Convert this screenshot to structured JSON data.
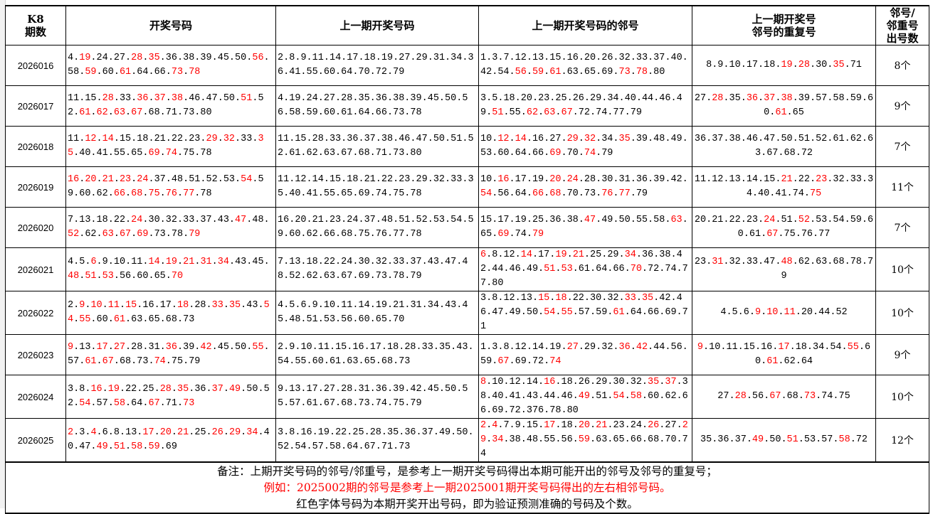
{
  "headers": [
    "K8\n期数",
    "开奖号码",
    "上一期开奖号码",
    "上一期开奖号码的邻号",
    "上一期开奖号\n邻号的重复号",
    "邻号/\n邻重号\n出号数"
  ],
  "colors": {
    "hit": "#ff0000",
    "text": "#000000"
  },
  "rows": [
    {
      "period": "2026016",
      "draw": {
        "nums": [
          "4",
          "19",
          "24",
          "27",
          "28",
          "35",
          "36",
          "38",
          "39",
          "45",
          "50",
          "56",
          "58",
          "59",
          "60",
          "61",
          "64",
          "66",
          "73",
          "78"
        ],
        "red": [
          "19",
          "28",
          "35",
          "56",
          "59",
          "61",
          "73",
          "78"
        ]
      },
      "prev": {
        "nums": [
          "2",
          "8",
          "9",
          "11",
          "14",
          "17",
          "18",
          "19",
          "27",
          "29",
          "31",
          "34",
          "36",
          "41",
          "55",
          "60",
          "64",
          "70",
          "72",
          "79"
        ],
        "red": []
      },
      "neighbors": {
        "nums": [
          "1",
          "3",
          "7",
          "12",
          "13",
          "15",
          "16",
          "20",
          "26",
          "32",
          "33",
          "37",
          "40",
          "42",
          "54",
          "56",
          "59",
          "61",
          "63",
          "65",
          "69",
          "73",
          "78",
          "80"
        ],
        "red": [
          "56",
          "59",
          "61",
          "73",
          "78"
        ]
      },
      "repeats": {
        "nums": [
          "8",
          "9",
          "10",
          "17",
          "18",
          "19",
          "28",
          "30",
          "35",
          "71"
        ],
        "red": [
          "19",
          "28",
          "35"
        ]
      },
      "count": "8个"
    },
    {
      "period": "2026017",
      "draw": {
        "nums": [
          "11",
          "15",
          "28",
          "33",
          "36",
          "37",
          "38",
          "46",
          "47",
          "50",
          "51",
          "52",
          "61",
          "62",
          "63",
          "67",
          "68",
          "71",
          "73",
          "80"
        ],
        "red": [
          "28",
          "36",
          "37",
          "38",
          "51",
          "61",
          "62",
          "63",
          "67"
        ]
      },
      "prev": {
        "nums": [
          "4",
          "19",
          "24",
          "27",
          "28",
          "35",
          "36",
          "38",
          "39",
          "45",
          "50",
          "56",
          "58",
          "59",
          "60",
          "61",
          "64",
          "66",
          "73",
          "78"
        ],
        "red": []
      },
      "neighbors": {
        "nums": [
          "3",
          "5",
          "18",
          "20",
          "23",
          "25",
          "26",
          "29",
          "34",
          "40",
          "44",
          "46",
          "49",
          "51",
          "55",
          "62",
          "63",
          "67",
          "72",
          "74",
          "77",
          "79"
        ],
        "red": [
          "51",
          "62",
          "63",
          "67"
        ]
      },
      "repeats": {
        "nums": [
          "27",
          "28",
          "35",
          "36",
          "37",
          "38",
          "39",
          "57",
          "58",
          "59",
          "60",
          "61",
          "65"
        ],
        "red": [
          "28",
          "36",
          "37",
          "38",
          "61"
        ]
      },
      "count": "9个"
    },
    {
      "period": "2026018",
      "draw": {
        "nums": [
          "11",
          "12",
          "14",
          "15",
          "18",
          "21",
          "22",
          "23",
          "29",
          "32",
          "33",
          "35",
          "40",
          "41",
          "55",
          "65",
          "69",
          "74",
          "75",
          "78"
        ],
        "red": [
          "12",
          "14",
          "29",
          "32",
          "35",
          "69",
          "74"
        ]
      },
      "prev": {
        "nums": [
          "11",
          "15",
          "28",
          "33",
          "36",
          "37",
          "38",
          "46",
          "47",
          "50",
          "51",
          "52",
          "61",
          "62",
          "63",
          "67",
          "68",
          "71",
          "73",
          "80"
        ],
        "red": []
      },
      "neighbors": {
        "nums": [
          "10",
          "12",
          "14",
          "16",
          "27",
          "29",
          "32",
          "34",
          "35",
          "39",
          "48",
          "49",
          "53",
          "60",
          "64",
          "66",
          "69",
          "70",
          "74",
          "79"
        ],
        "red": [
          "12",
          "14",
          "29",
          "32",
          "35",
          "69",
          "74"
        ]
      },
      "repeats": {
        "nums": [
          "36",
          "37",
          "38",
          "46",
          "47",
          "50",
          "51",
          "52",
          "61",
          "62",
          "63",
          "67",
          "68",
          "72"
        ],
        "red": []
      },
      "count": "7个"
    },
    {
      "period": "2026019",
      "draw": {
        "nums": [
          "16",
          "20",
          "21",
          "23",
          "24",
          "37",
          "48",
          "51",
          "52",
          "53",
          "54",
          "59",
          "60",
          "62",
          "66",
          "68",
          "75",
          "76",
          "77",
          "78"
        ],
        "red": [
          "16",
          "20",
          "21",
          "23",
          "24",
          "54",
          "66",
          "68",
          "75",
          "76",
          "77"
        ]
      },
      "prev": {
        "nums": [
          "11",
          "12",
          "14",
          "15",
          "18",
          "21",
          "22",
          "23",
          "29",
          "32",
          "33",
          "35",
          "40",
          "41",
          "55",
          "65",
          "69",
          "74",
          "75",
          "78"
        ],
        "red": []
      },
      "neighbors": {
        "nums": [
          "10",
          "16",
          "17",
          "19",
          "20",
          "24",
          "28",
          "30",
          "31",
          "36",
          "39",
          "42",
          "54",
          "56",
          "64",
          "66",
          "68",
          "70",
          "73",
          "76",
          "77",
          "79"
        ],
        "red": [
          "16",
          "20",
          "24",
          "54",
          "66",
          "68",
          "76",
          "77"
        ]
      },
      "repeats": {
        "nums": [
          "11",
          "12",
          "13",
          "14",
          "15",
          "21",
          "22",
          "23",
          "32",
          "33",
          "34",
          "40",
          "41",
          "74",
          "75"
        ],
        "red": [
          "21",
          "23",
          "75"
        ]
      },
      "count": "11个"
    },
    {
      "period": "2026020",
      "draw": {
        "nums": [
          "7",
          "13",
          "18",
          "22",
          "24",
          "30",
          "32",
          "33",
          "37",
          "43",
          "47",
          "48",
          "52",
          "62",
          "63",
          "67",
          "69",
          "73",
          "78",
          "79"
        ],
        "red": [
          "24",
          "47",
          "52",
          "63",
          "67",
          "69",
          "79"
        ]
      },
      "prev": {
        "nums": [
          "16",
          "20",
          "21",
          "23",
          "24",
          "37",
          "48",
          "51",
          "52",
          "53",
          "54",
          "59",
          "60",
          "62",
          "66",
          "68",
          "75",
          "76",
          "77",
          "78"
        ],
        "red": []
      },
      "neighbors": {
        "nums": [
          "15",
          "17",
          "19",
          "25",
          "36",
          "38",
          "47",
          "49",
          "50",
          "55",
          "58",
          "63",
          "65",
          "69",
          "74",
          "79"
        ],
        "red": [
          "47",
          "63",
          "69",
          "79"
        ]
      },
      "repeats": {
        "nums": [
          "20",
          "21",
          "22",
          "23",
          "24",
          "51",
          "52",
          "53",
          "54",
          "59",
          "60",
          "61",
          "67",
          "75",
          "76",
          "77"
        ],
        "red": [
          "24",
          "52",
          "67"
        ]
      },
      "count": "7个"
    },
    {
      "period": "2026021",
      "draw": {
        "nums": [
          "4",
          "5",
          "6",
          "9",
          "10",
          "11",
          "14",
          "19",
          "21",
          "31",
          "34",
          "43",
          "45",
          "48",
          "51",
          "53",
          "56",
          "60",
          "65",
          "70"
        ],
        "red": [
          "6",
          "14",
          "19",
          "21",
          "31",
          "34",
          "48",
          "51",
          "53",
          "70"
        ]
      },
      "prev": {
        "nums": [
          "7",
          "13",
          "18",
          "22",
          "24",
          "30",
          "32",
          "33",
          "37",
          "43",
          "47",
          "48",
          "52",
          "62",
          "63",
          "67",
          "69",
          "73",
          "78",
          "79"
        ],
        "red": []
      },
      "neighbors": {
        "nums": [
          "6",
          "8",
          "12",
          "14",
          "17",
          "19",
          "21",
          "25",
          "29",
          "34",
          "36",
          "38",
          "42",
          "44",
          "46",
          "49",
          "51",
          "53",
          "61",
          "64",
          "66",
          "70",
          "72",
          "74",
          "77",
          "80"
        ],
        "red": [
          "6",
          "14",
          "19",
          "21",
          "34",
          "51",
          "53",
          "70"
        ]
      },
      "repeats": {
        "nums": [
          "23",
          "31",
          "32",
          "33",
          "47",
          "48",
          "62",
          "63",
          "68",
          "78",
          "79"
        ],
        "red": [
          "31",
          "48"
        ]
      },
      "count": "10个"
    },
    {
      "period": "2026022",
      "draw": {
        "nums": [
          "2",
          "9",
          "10",
          "11",
          "15",
          "16",
          "17",
          "18",
          "28",
          "33",
          "35",
          "43",
          "54",
          "55",
          "60",
          "61",
          "63",
          "65",
          "68",
          "73"
        ],
        "red": [
          "9",
          "10",
          "11",
          "15",
          "18",
          "33",
          "35",
          "54",
          "55",
          "61"
        ]
      },
      "prev": {
        "nums": [
          "4",
          "5",
          "6",
          "9",
          "10",
          "11",
          "14",
          "19",
          "21",
          "31",
          "34",
          "43",
          "45",
          "48",
          "51",
          "53",
          "56",
          "60",
          "65",
          "70"
        ],
        "red": []
      },
      "neighbors": {
        "nums": [
          "3",
          "8",
          "12",
          "13",
          "15",
          "18",
          "22",
          "30",
          "32",
          "33",
          "35",
          "42",
          "46",
          "47",
          "49",
          "50",
          "54",
          "55",
          "57",
          "59",
          "61",
          "64",
          "66",
          "69",
          "71"
        ],
        "red": [
          "15",
          "18",
          "33",
          "35",
          "54",
          "55",
          "61"
        ]
      },
      "repeats": {
        "nums": [
          "4",
          "5",
          "6",
          "9",
          "10",
          "11",
          "20",
          "44",
          "52"
        ],
        "red": [
          "9",
          "10",
          "11"
        ]
      },
      "count": "10个"
    },
    {
      "period": "2026023",
      "draw": {
        "nums": [
          "9",
          "13",
          "17",
          "27",
          "28",
          "31",
          "36",
          "39",
          "42",
          "45",
          "50",
          "55",
          "57",
          "61",
          "67",
          "68",
          "73",
          "74",
          "75",
          "79"
        ],
        "red": [
          "9",
          "17",
          "27",
          "36",
          "42",
          "55",
          "61",
          "67",
          "74"
        ]
      },
      "prev": {
        "nums": [
          "2",
          "9",
          "10",
          "11",
          "15",
          "16",
          "17",
          "18",
          "28",
          "33",
          "35",
          "43",
          "54",
          "55",
          "60",
          "61",
          "63",
          "65",
          "68",
          "73"
        ],
        "red": []
      },
      "neighbors": {
        "nums": [
          "1",
          "3",
          "8",
          "12",
          "14",
          "19",
          "27",
          "29",
          "32",
          "36",
          "42",
          "44",
          "56",
          "59",
          "67",
          "69",
          "72",
          "74"
        ],
        "red": [
          "27",
          "36",
          "42",
          "67",
          "74"
        ]
      },
      "repeats": {
        "nums": [
          "9",
          "10",
          "11",
          "15",
          "16",
          "17",
          "18",
          "34",
          "54",
          "55",
          "60",
          "61",
          "62",
          "64"
        ],
        "red": [
          "9",
          "17",
          "55",
          "61"
        ]
      },
      "count": "9个"
    },
    {
      "period": "2026024",
      "draw": {
        "nums": [
          "3",
          "8",
          "16",
          "19",
          "22",
          "25",
          "28",
          "35",
          "36",
          "37",
          "49",
          "50",
          "52",
          "54",
          "57",
          "58",
          "64",
          "67",
          "71",
          "73"
        ],
        "red": [
          "16",
          "19",
          "28",
          "35",
          "37",
          "49",
          "54",
          "58",
          "67",
          "73"
        ]
      },
      "prev": {
        "nums": [
          "9",
          "13",
          "17",
          "27",
          "28",
          "31",
          "36",
          "39",
          "42",
          "45",
          "50",
          "55",
          "57",
          "61",
          "67",
          "68",
          "73",
          "74",
          "75",
          "79"
        ],
        "red": []
      },
      "neighbors": {
        "nums": [
          "8",
          "10",
          "12",
          "14",
          "16",
          "18",
          "26",
          "29",
          "30",
          "32",
          "35",
          "37",
          "38",
          "40",
          "41",
          "43",
          "44",
          "46",
          "49",
          "51",
          "54",
          "58",
          "60",
          "62",
          "66",
          "69",
          "72",
          "376",
          "78",
          "80"
        ],
        "red": [
          "8",
          "16",
          "35",
          "37",
          "49",
          "54",
          "58"
        ]
      },
      "repeats": {
        "nums": [
          "27",
          "28",
          "56",
          "67",
          "68",
          "73",
          "74",
          "75"
        ],
        "red": [
          "28",
          "67",
          "73"
        ]
      },
      "count": "10个"
    },
    {
      "period": "2026025",
      "draw": {
        "nums": [
          "2",
          "3",
          "4",
          "6",
          "8",
          "13",
          "17",
          "20",
          "21",
          "25",
          "26",
          "29",
          "34",
          "40",
          "47",
          "49",
          "51",
          "58",
          "59",
          "69"
        ],
        "red": [
          "2",
          "4",
          "17",
          "20",
          "21",
          "26",
          "29",
          "34",
          "49",
          "51",
          "58",
          "59"
        ]
      },
      "prev": {
        "nums": [
          "3",
          "8",
          "16",
          "19",
          "22",
          "25",
          "28",
          "35",
          "36",
          "37",
          "49",
          "50",
          "52",
          "54",
          "57",
          "58",
          "64",
          "67",
          "71",
          "73"
        ],
        "red": []
      },
      "neighbors": {
        "nums": [
          "2",
          "4",
          "7",
          "9",
          "15",
          "17",
          "18",
          "20",
          "21",
          "23",
          "24",
          "26",
          "27",
          "29",
          "34",
          "38",
          "48",
          "55",
          "56",
          "59",
          "63",
          "65",
          "66",
          "68",
          "70",
          "74"
        ],
        "red": [
          "2",
          "4",
          "17",
          "20",
          "21",
          "26",
          "29",
          "34",
          "59"
        ]
      },
      "repeats": {
        "nums": [
          "35",
          "36",
          "37",
          "49",
          "50",
          "51",
          "53",
          "57",
          "58",
          "72"
        ],
        "red": [
          "49",
          "51",
          "58"
        ]
      },
      "count": "12个"
    }
  ],
  "notes": {
    "line1": "备注：上期开奖号码的邻号/邻重号，是参考上一期开奖号码得出本期可能开出的邻号及邻号的重复号；",
    "line2": "例如：2025002期的邻号是参考上一期2025001期开奖号码得出的左右相邻号码。",
    "line3": "红色字体号码为本期开奖开出号码，即为验证预测准确的号码及个数。"
  }
}
